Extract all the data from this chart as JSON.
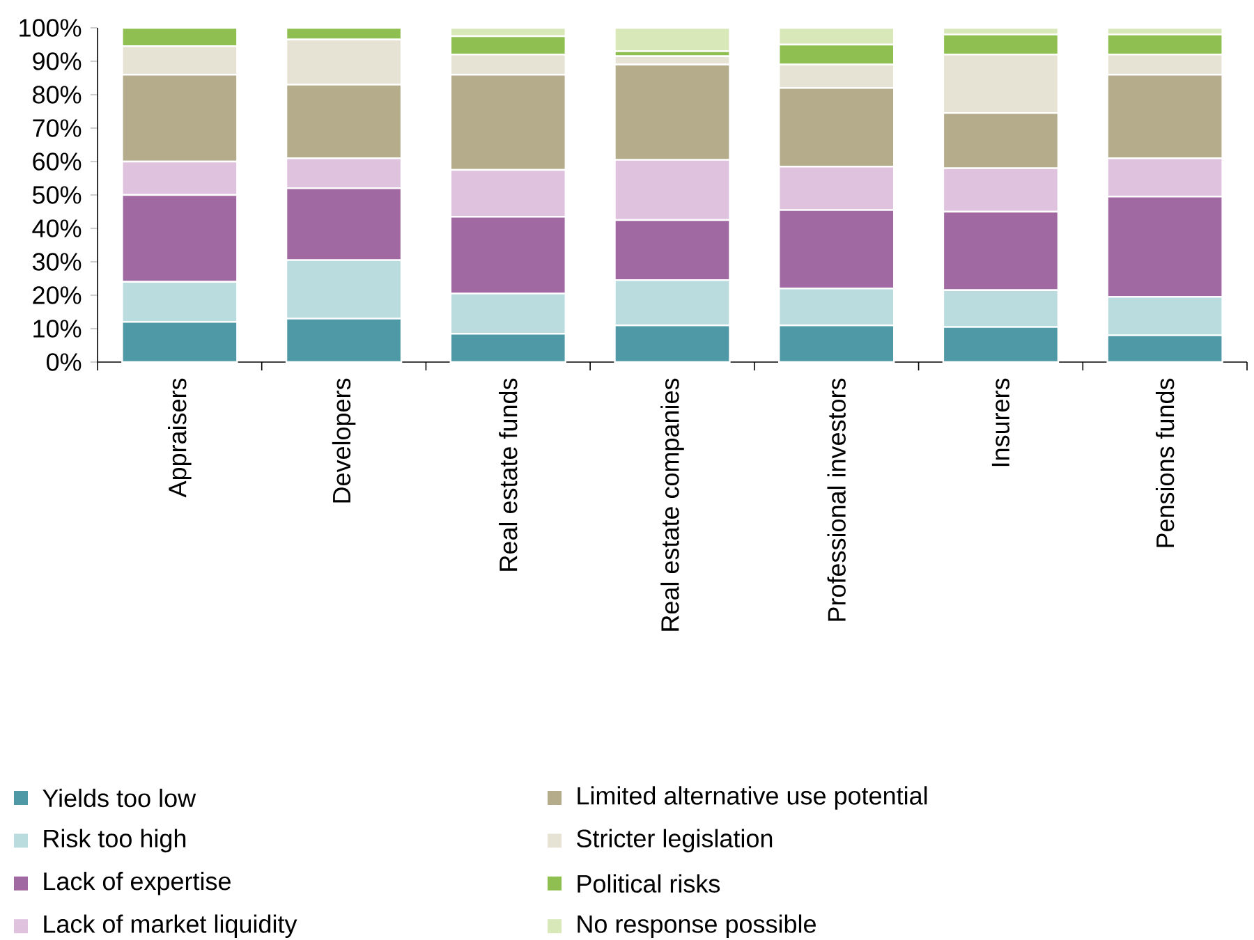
{
  "chart_data": {
    "type": "bar",
    "stacked": true,
    "legend": "bottom",
    "categories": [
      "Appraisers",
      "Developers",
      "Real estate funds",
      "Real estate companies",
      "Professional investors",
      "Insurers",
      "Pensions funds"
    ],
    "ylim": [
      0,
      100
    ],
    "yticks": [
      {
        "value": 0,
        "label": "0%"
      },
      {
        "value": 10,
        "label": "10%"
      },
      {
        "value": 20,
        "label": "20%"
      },
      {
        "value": 30,
        "label": "30%"
      },
      {
        "value": 40,
        "label": "40%"
      },
      {
        "value": 50,
        "label": "50%"
      },
      {
        "value": 60,
        "label": "60%"
      },
      {
        "value": 70,
        "label": "70%"
      },
      {
        "value": 80,
        "label": "80%"
      },
      {
        "value": 90,
        "label": "90%"
      },
      {
        "value": 100,
        "label": "100%"
      }
    ],
    "series": [
      {
        "name": "Yields too low",
        "color": "#4f98a5",
        "values": [
          12,
          13,
          8.5,
          11,
          11,
          10.5,
          8
        ]
      },
      {
        "name": "Risk too high",
        "color": "#badcdf",
        "values": [
          12,
          17.5,
          12,
          13.5,
          11,
          11,
          11.5
        ]
      },
      {
        "name": "Lack of expertise",
        "color": "#a069a2",
        "values": [
          26,
          21.5,
          23,
          18,
          23.5,
          23.5,
          30
        ]
      },
      {
        "name": "Lack of market liquidity",
        "color": "#dfc3de",
        "values": [
          10,
          9,
          14,
          18,
          13,
          13,
          11.5
        ]
      },
      {
        "name": "Limited alternative use potential",
        "color": "#b4ac8a",
        "values": [
          26,
          22,
          28.5,
          28.5,
          23.5,
          16.5,
          25
        ]
      },
      {
        "name": "Stricter legislation",
        "color": "#e6e3d5",
        "values": [
          8.5,
          13.5,
          6,
          2.5,
          7,
          17.5,
          6
        ]
      },
      {
        "name": "Political risks",
        "color": "#8fbf50",
        "values": [
          5.5,
          3.5,
          5.5,
          1.5,
          6,
          6,
          6
        ]
      },
      {
        "name": "No response possible",
        "color": "#d9e8b9",
        "values": [
          0,
          0,
          2.5,
          7,
          5,
          2,
          2
        ]
      }
    ]
  }
}
